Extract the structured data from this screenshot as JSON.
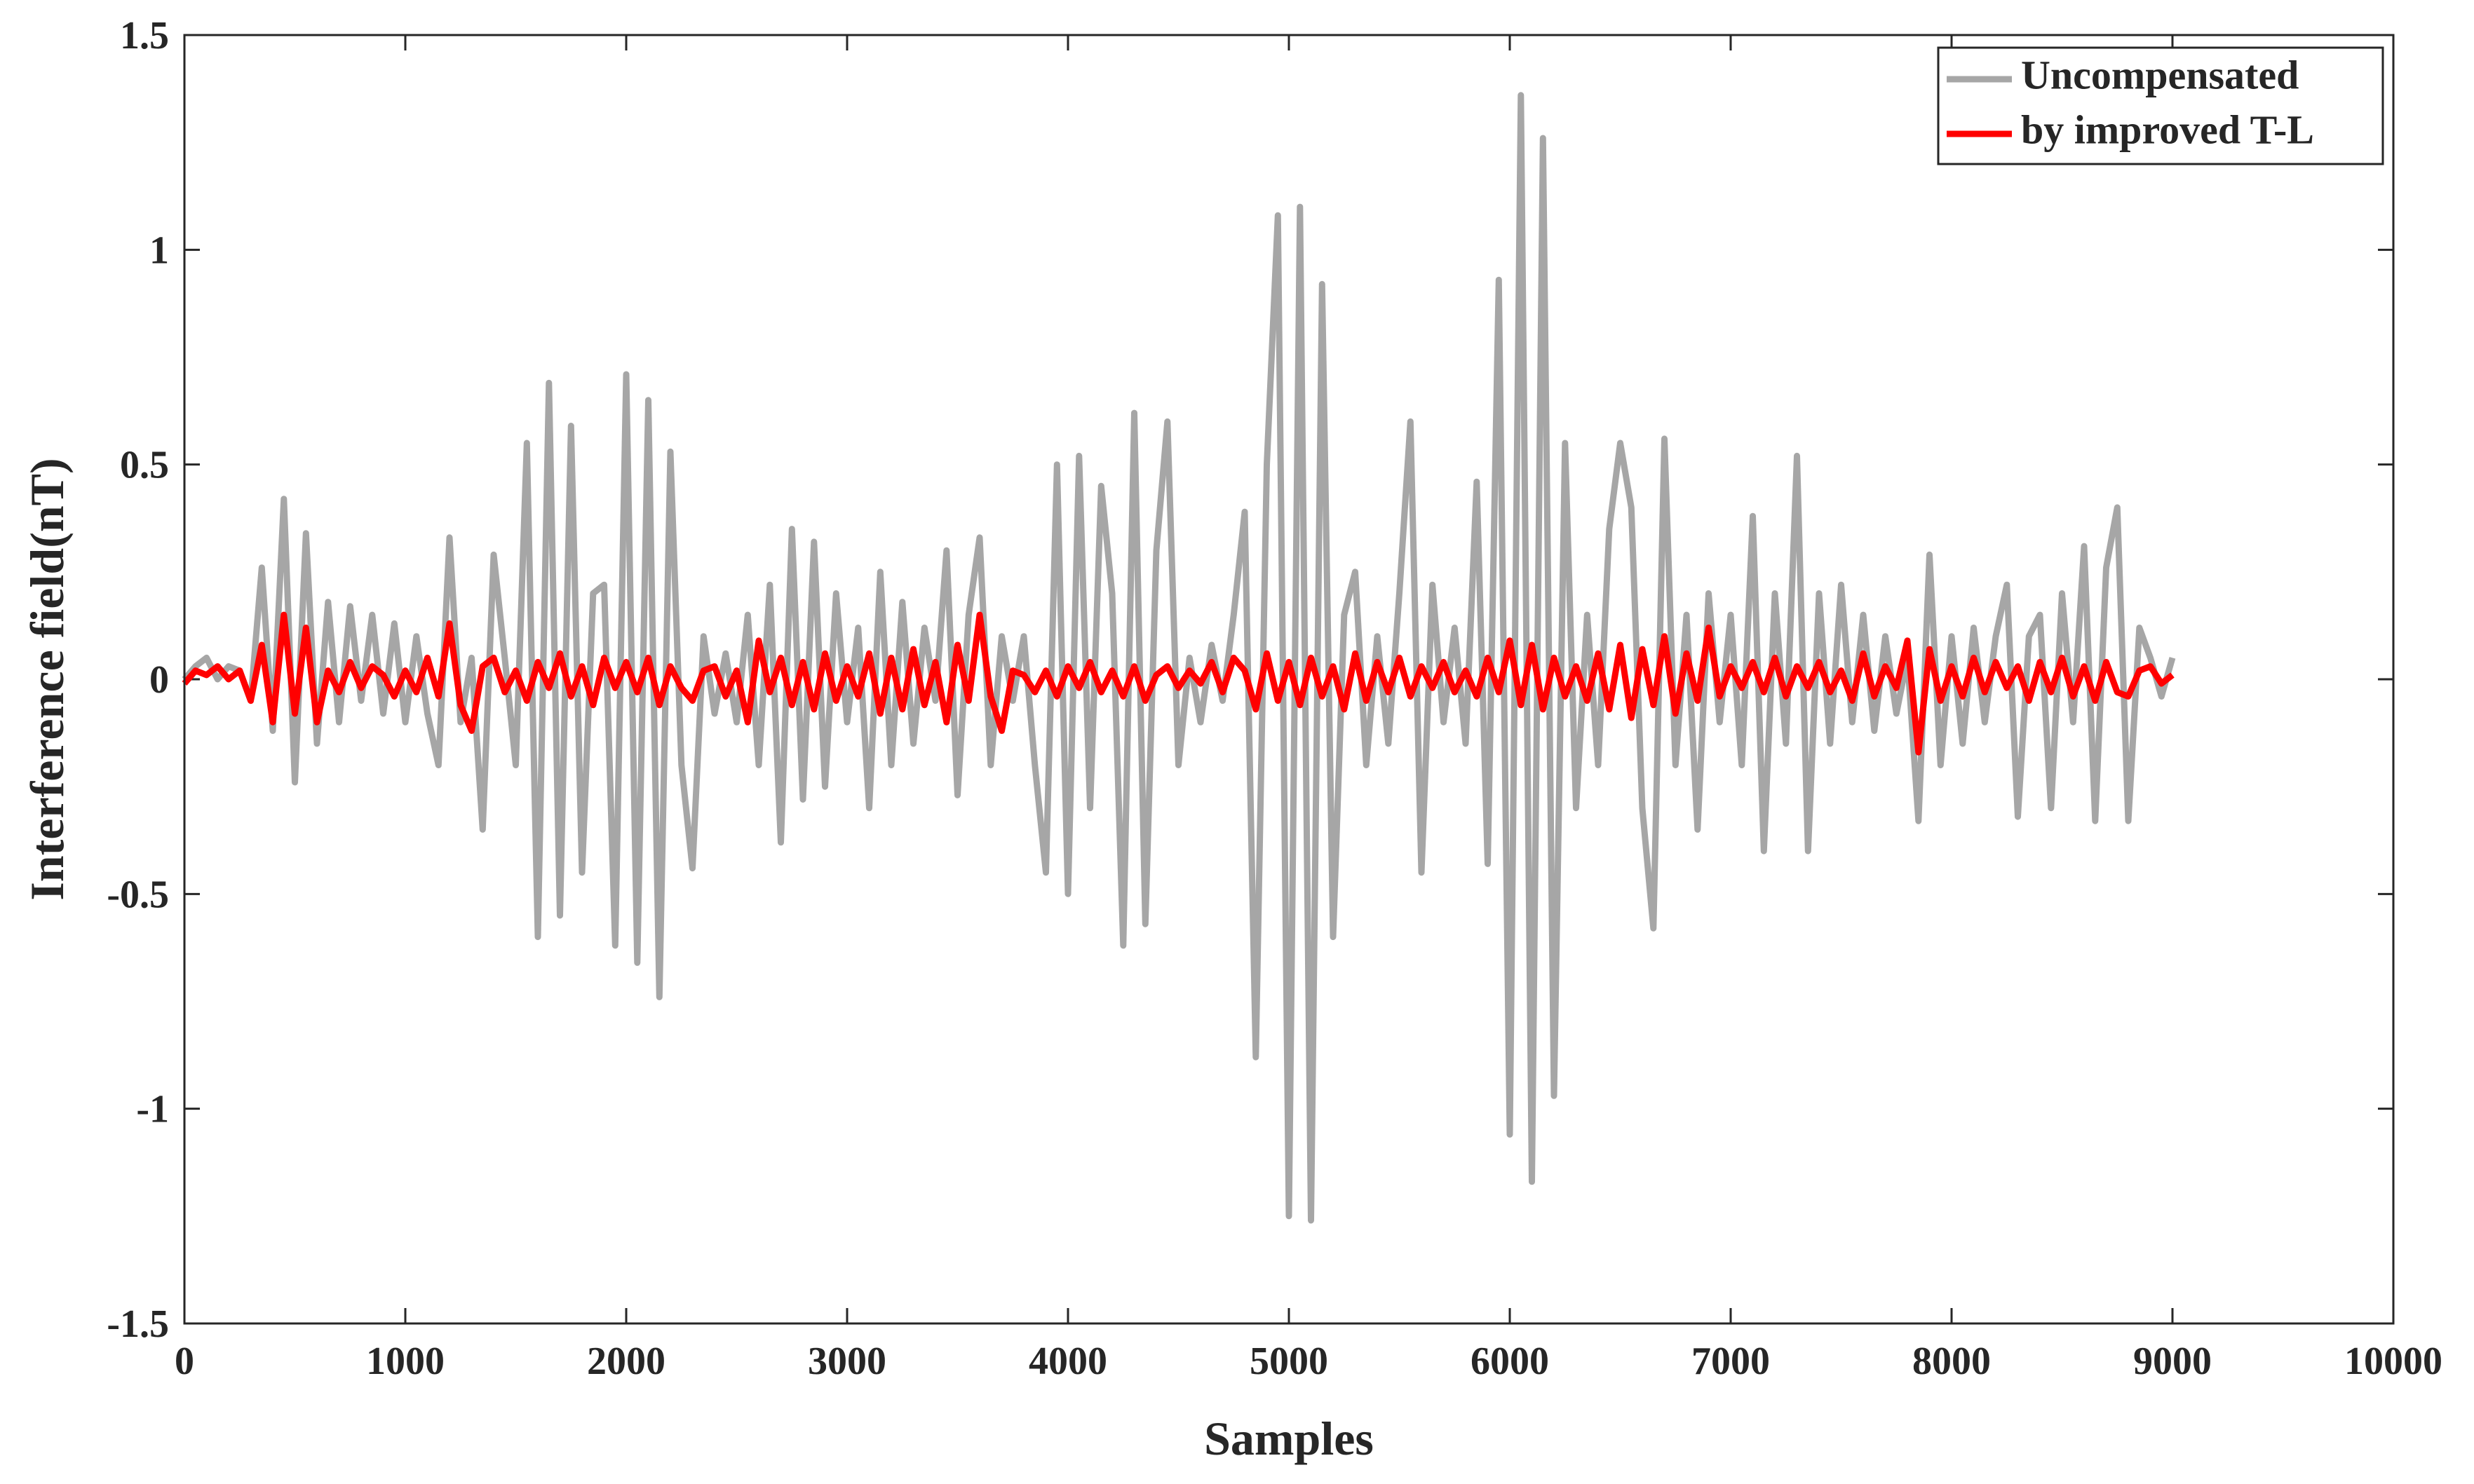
{
  "chart_data": {
    "type": "line",
    "xlabel": "Samples",
    "ylabel": "Interference field(nT)",
    "xlim": [
      0,
      10000
    ],
    "xticks": [
      0,
      1000,
      2000,
      3000,
      4000,
      5000,
      6000,
      7000,
      8000,
      9000,
      10000
    ],
    "ylim": [
      -1.5,
      1.5
    ],
    "yticks": [
      -1.5,
      -1,
      -0.5,
      0,
      0.5,
      1,
      1.5
    ],
    "grid": false,
    "legend": "upper right",
    "x": [
      0,
      50,
      100,
      150,
      200,
      250,
      300,
      350,
      400,
      450,
      500,
      550,
      600,
      650,
      700,
      750,
      800,
      850,
      900,
      950,
      1000,
      1050,
      1100,
      1150,
      1200,
      1250,
      1300,
      1350,
      1400,
      1450,
      1500,
      1550,
      1600,
      1650,
      1700,
      1750,
      1800,
      1850,
      1900,
      1950,
      2000,
      2050,
      2100,
      2150,
      2200,
      2250,
      2300,
      2350,
      2400,
      2450,
      2500,
      2550,
      2600,
      2650,
      2700,
      2750,
      2800,
      2850,
      2900,
      2950,
      3000,
      3050,
      3100,
      3150,
      3200,
      3250,
      3300,
      3350,
      3400,
      3450,
      3500,
      3550,
      3600,
      3650,
      3700,
      3750,
      3800,
      3850,
      3900,
      3950,
      4000,
      4050,
      4100,
      4150,
      4200,
      4250,
      4300,
      4350,
      4400,
      4450,
      4500,
      4550,
      4600,
      4650,
      4700,
      4750,
      4800,
      4850,
      4900,
      4950,
      5000,
      5050,
      5100,
      5150,
      5200,
      5250,
      5300,
      5350,
      5400,
      5450,
      5500,
      5550,
      5600,
      5650,
      5700,
      5750,
      5800,
      5850,
      5900,
      5950,
      6000,
      6050,
      6100,
      6150,
      6200,
      6250,
      6300,
      6350,
      6400,
      6450,
      6500,
      6550,
      6600,
      6650,
      6700,
      6750,
      6800,
      6850,
      6900,
      6950,
      7000,
      7050,
      7100,
      7150,
      7200,
      7250,
      7300,
      7350,
      7400,
      7450,
      7500,
      7550,
      7600,
      7650,
      7700,
      7750,
      7800,
      7850,
      7900,
      7950,
      8000,
      8050,
      8100,
      8150,
      8200,
      8250,
      8300,
      8350,
      8400,
      8450,
      8500,
      8550,
      8600,
      8650,
      8700,
      8750,
      8800,
      8850,
      8900,
      8950,
      9000
    ],
    "series": [
      {
        "name": "Uncompensated",
        "color": "#a6a6a6",
        "values": [
          0,
          0.03,
          0.05,
          0,
          0.03,
          0.02,
          -0.05,
          0.26,
          -0.12,
          0.42,
          -0.24,
          0.34,
          -0.15,
          0.18,
          -0.1,
          0.17,
          -0.05,
          0.15,
          -0.08,
          0.13,
          -0.1,
          0.1,
          -0.08,
          -0.2,
          0.33,
          -0.1,
          0.05,
          -0.35,
          0.29,
          0.05,
          -0.2,
          0.55,
          -0.6,
          0.69,
          -0.55,
          0.59,
          -0.45,
          0.2,
          0.22,
          -0.62,
          0.71,
          -0.66,
          0.65,
          -0.74,
          0.53,
          -0.2,
          -0.44,
          0.1,
          -0.08,
          0.06,
          -0.1,
          0.15,
          -0.2,
          0.22,
          -0.38,
          0.35,
          -0.28,
          0.32,
          -0.25,
          0.2,
          -0.1,
          0.12,
          -0.3,
          0.25,
          -0.2,
          0.18,
          -0.15,
          0.12,
          -0.05,
          0.3,
          -0.27,
          0.15,
          0.33,
          -0.2,
          0.1,
          -0.05,
          0.1,
          -0.2,
          -0.45,
          0.5,
          -0.5,
          0.52,
          -0.3,
          0.45,
          0.2,
          -0.62,
          0.62,
          -0.57,
          0.3,
          0.6,
          -0.2,
          0.05,
          -0.1,
          0.08,
          -0.05,
          0.15,
          0.39,
          -0.88,
          0.5,
          1.08,
          -1.25,
          1.1,
          -1.26,
          0.92,
          -0.6,
          0.15,
          0.25,
          -0.2,
          0.1,
          -0.15,
          0.2,
          0.6,
          -0.45,
          0.22,
          -0.1,
          0.12,
          -0.15,
          0.46,
          -0.43,
          0.93,
          -1.06,
          1.36,
          -1.17,
          1.26,
          -0.97,
          0.55,
          -0.3,
          0.15,
          -0.2,
          0.35,
          0.55,
          0.4,
          -0.3,
          -0.58,
          0.56,
          -0.2,
          0.15,
          -0.35,
          0.2,
          -0.1,
          0.15,
          -0.2,
          0.38,
          -0.4,
          0.2,
          -0.15,
          0.52,
          -0.4,
          0.2,
          -0.15,
          0.22,
          -0.1,
          0.15,
          -0.12,
          0.1,
          -0.08,
          0.05,
          -0.33,
          0.29,
          -0.2,
          0.1,
          -0.15,
          0.12,
          -0.1,
          0.1,
          0.22,
          -0.32,
          0.1,
          0.15,
          -0.3,
          0.2,
          -0.1,
          0.31,
          -0.33,
          0.26,
          0.4,
          -0.33,
          0.12,
          0.05,
          -0.04,
          0.05
        ]
      },
      {
        "name": "by improved T-L",
        "color": "#ff0000",
        "values": [
          -0.01,
          0.02,
          0.01,
          0.03,
          0,
          0.02,
          -0.05,
          0.08,
          -0.1,
          0.15,
          -0.08,
          0.12,
          -0.1,
          0.02,
          -0.03,
          0.04,
          -0.02,
          0.03,
          0.01,
          -0.04,
          0.02,
          -0.03,
          0.05,
          -0.04,
          0.13,
          -0.06,
          -0.12,
          0.03,
          0.05,
          -0.03,
          0.02,
          -0.05,
          0.04,
          -0.02,
          0.06,
          -0.04,
          0.03,
          -0.06,
          0.05,
          -0.02,
          0.04,
          -0.03,
          0.05,
          -0.06,
          0.03,
          -0.02,
          -0.05,
          0.02,
          0.03,
          -0.04,
          0.02,
          -0.1,
          0.09,
          -0.03,
          0.05,
          -0.06,
          0.04,
          -0.07,
          0.06,
          -0.05,
          0.03,
          -0.04,
          0.06,
          -0.08,
          0.05,
          -0.07,
          0.07,
          -0.06,
          0.04,
          -0.1,
          0.08,
          -0.05,
          0.15,
          -0.04,
          -0.12,
          0.02,
          0.01,
          -0.03,
          0.02,
          -0.04,
          0.03,
          -0.02,
          0.04,
          -0.03,
          0.02,
          -0.04,
          0.03,
          -0.05,
          0.01,
          0.03,
          -0.02,
          0.02,
          -0.01,
          0.04,
          -0.03,
          0.05,
          0.02,
          -0.07,
          0.06,
          -0.05,
          0.04,
          -0.06,
          0.05,
          -0.04,
          0.03,
          -0.07,
          0.06,
          -0.05,
          0.04,
          -0.03,
          0.05,
          -0.04,
          0.03,
          -0.02,
          0.04,
          -0.03,
          0.02,
          -0.04,
          0.05,
          -0.03,
          0.09,
          -0.06,
          0.08,
          -0.07,
          0.05,
          -0.04,
          0.03,
          -0.05,
          0.06,
          -0.07,
          0.08,
          -0.09,
          0.07,
          -0.06,
          0.1,
          -0.08,
          0.06,
          -0.05,
          0.12,
          -0.04,
          0.03,
          -0.02,
          0.04,
          -0.03,
          0.05,
          -0.04,
          0.03,
          -0.02,
          0.04,
          -0.03,
          0.02,
          -0.05,
          0.06,
          -0.04,
          0.03,
          -0.02,
          0.09,
          -0.17,
          0.07,
          -0.05,
          0.03,
          -0.04,
          0.05,
          -0.03,
          0.04,
          -0.02,
          0.03,
          -0.05,
          0.04,
          -0.03,
          0.05,
          -0.04,
          0.03,
          -0.05,
          0.04,
          -0.03,
          -0.04,
          0.02,
          0.03,
          -0.01,
          0.01
        ]
      }
    ]
  }
}
